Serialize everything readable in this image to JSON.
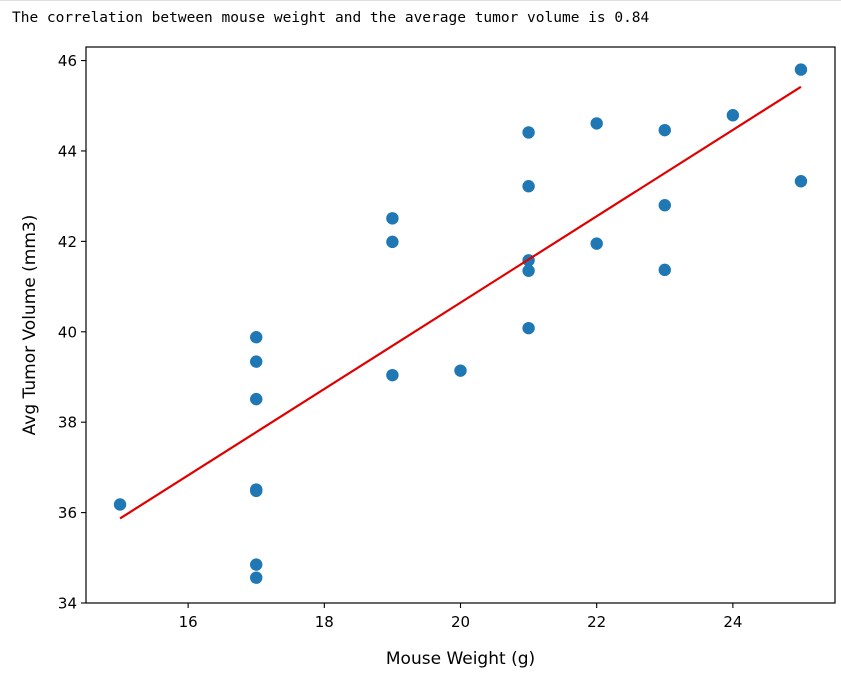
{
  "output": {
    "text": "The correlation between mouse weight and the average tumor volume is 0.84"
  },
  "chart_data": {
    "type": "scatter",
    "title": "",
    "xlabel": "Mouse Weight (g)",
    "ylabel": "Avg Tumor Volume (mm3)",
    "xlim": [
      14.5,
      25.5
    ],
    "ylim": [
      34,
      46.3
    ],
    "xticks": [
      16,
      18,
      20,
      22,
      24
    ],
    "yticks": [
      34,
      36,
      38,
      40,
      42,
      44,
      46
    ],
    "grid": false,
    "legend": "none",
    "series": [
      {
        "kind": "scatter",
        "color": "#1f77b4",
        "points": [
          [
            15,
            36.18
          ],
          [
            17,
            39.88
          ],
          [
            17,
            39.34
          ],
          [
            17,
            38.51
          ],
          [
            17,
            36.51
          ],
          [
            17,
            36.48
          ],
          [
            17,
            34.85
          ],
          [
            17,
            34.56
          ],
          [
            19,
            42.51
          ],
          [
            19,
            41.99
          ],
          [
            19,
            39.04
          ],
          [
            20,
            39.14
          ],
          [
            21,
            44.41
          ],
          [
            21,
            43.22
          ],
          [
            21,
            41.58
          ],
          [
            21,
            41.35
          ],
          [
            21,
            40.08
          ],
          [
            22,
            44.61
          ],
          [
            22,
            41.95
          ],
          [
            23,
            44.46
          ],
          [
            23,
            42.8
          ],
          [
            23,
            41.37
          ],
          [
            24,
            44.79
          ],
          [
            25,
            45.8
          ],
          [
            25,
            43.33
          ]
        ]
      },
      {
        "kind": "line",
        "color": "#e00000",
        "points": [
          [
            15,
            35.87
          ],
          [
            25,
            45.42
          ]
        ]
      }
    ]
  }
}
